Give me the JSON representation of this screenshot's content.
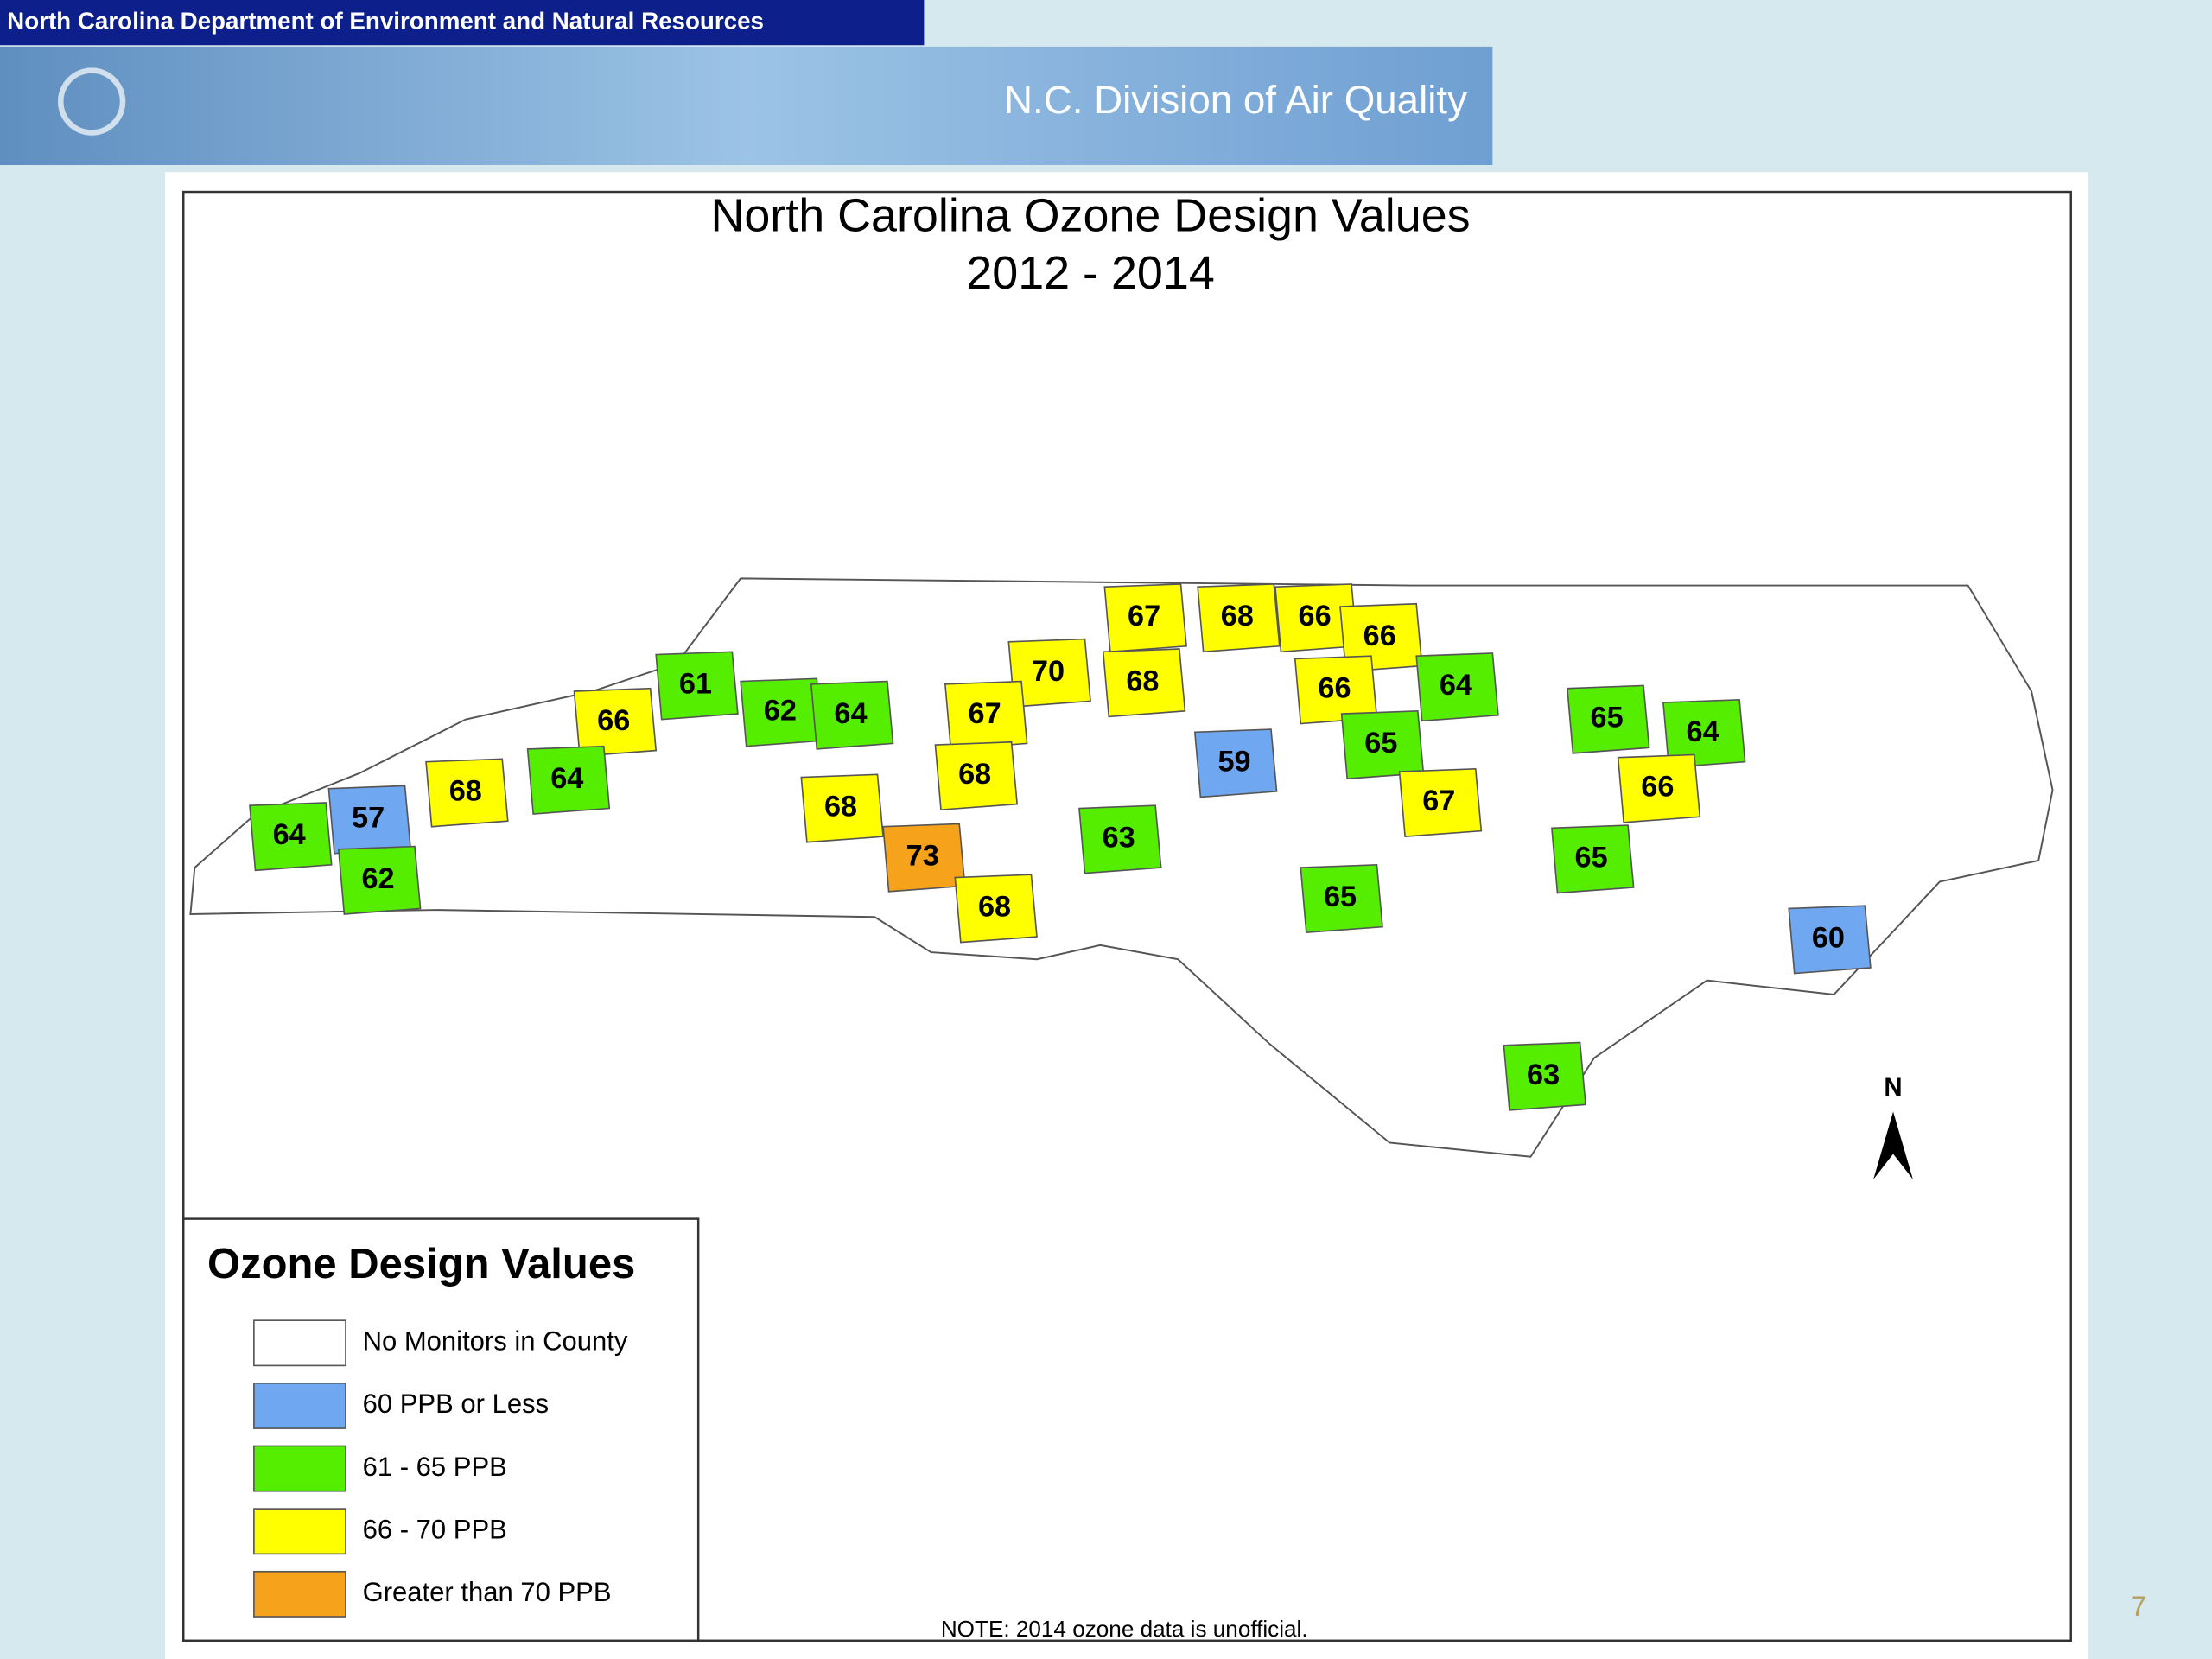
{
  "header": {
    "agency": "North Carolina Department of Environment and Natural Resources",
    "division": "N.C. Division of Air Quality"
  },
  "map": {
    "title_line1": "North Carolina Ozone Design Values",
    "title_line2": "2012 - 2014",
    "north": "N",
    "note": "NOTE: 2014 ozone data is unofficial.",
    "counties": [
      {
        "value": 67,
        "color": "#ffff00"
      },
      {
        "value": 68,
        "color": "#ffff00"
      },
      {
        "value": 66,
        "color": "#ffff00"
      },
      {
        "value": 66,
        "color": "#ffff00"
      },
      {
        "value": 70,
        "color": "#ffff00"
      },
      {
        "value": 68,
        "color": "#ffff00"
      },
      {
        "value": 66,
        "color": "#ffff00"
      },
      {
        "value": 64,
        "color": "#55ee00"
      },
      {
        "value": 61,
        "color": "#55ee00"
      },
      {
        "value": 62,
        "color": "#55ee00"
      },
      {
        "value": 64,
        "color": "#55ee00"
      },
      {
        "value": 66,
        "color": "#ffff00"
      },
      {
        "value": 67,
        "color": "#ffff00"
      },
      {
        "value": 65,
        "color": "#55ee00"
      },
      {
        "value": 64,
        "color": "#55ee00"
      },
      {
        "value": 65,
        "color": "#55ee00"
      },
      {
        "value": 59,
        "color": "#6fa8f0"
      },
      {
        "value": 68,
        "color": "#ffff00"
      },
      {
        "value": 66,
        "color": "#ffff00"
      },
      {
        "value": 68,
        "color": "#ffff00"
      },
      {
        "value": 64,
        "color": "#55ee00"
      },
      {
        "value": 57,
        "color": "#6fa8f0"
      },
      {
        "value": 68,
        "color": "#ffff00"
      },
      {
        "value": 67,
        "color": "#ffff00"
      },
      {
        "value": 73,
        "color": "#f7a21b"
      },
      {
        "value": 63,
        "color": "#55ee00"
      },
      {
        "value": 64,
        "color": "#55ee00"
      },
      {
        "value": 62,
        "color": "#55ee00"
      },
      {
        "value": 65,
        "color": "#55ee00"
      },
      {
        "value": 65,
        "color": "#55ee00"
      },
      {
        "value": 68,
        "color": "#ffff00"
      },
      {
        "value": 60,
        "color": "#6fa8f0"
      },
      {
        "value": 63,
        "color": "#55ee00"
      }
    ]
  },
  "legend": {
    "title": "Ozone Design Values",
    "items": [
      {
        "label": "No Monitors in County",
        "color": "#ffffff"
      },
      {
        "label": "60 PPB or Less",
        "color": "#6fa8f0"
      },
      {
        "label": "61 - 65 PPB",
        "color": "#55ee00"
      },
      {
        "label": "66 - 70 PPB",
        "color": "#ffff00"
      },
      {
        "label": "Greater than 70 PPB",
        "color": "#f7a21b"
      }
    ]
  },
  "page_number": "7"
}
